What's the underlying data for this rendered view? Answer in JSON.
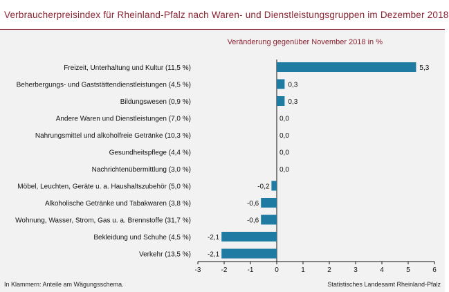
{
  "chart_data": {
    "type": "bar",
    "orientation": "horizontal",
    "title": "Verbraucherpreisindex für Rheinland-Pfalz nach Waren- und Dienstleistungsgruppen im Dezember 2018",
    "subtitle": "Veränderung  gegenüber November 2018 in %",
    "categories": [
      "Freizeit, Unterhaltung und Kultur (11,5 %)",
      "Beherbergungs- und Gaststättendienstleistungen (4,5 %)",
      "Bildungswesen (0,9 %)",
      "Andere Waren und Dienstleistungen (7,0 %)",
      "Nahrungsmittel und alkoholfreie Getränke (10,3 %)",
      "Gesundheitspflege (4,4 %)",
      "Nachrichtenübermittlung (3,0 %)",
      "Möbel, Leuchten, Geräte u. a. Haushaltszubehör (5,0 %)",
      "Alkoholische Getränke und Tabakwaren (3,8 %)",
      "Wohnung, Wasser, Strom, Gas u. a. Brennstoffe (31,7 %)",
      "Bekleidung und Schuhe (4,5 %)",
      "Verkehr (13,5 %)"
    ],
    "values": [
      5.3,
      0.3,
      0.3,
      0.0,
      0.0,
      0.0,
      0.0,
      -0.2,
      -0.6,
      -0.6,
      -2.1,
      -2.1
    ],
    "value_labels": [
      "5,3",
      "0,3",
      "0,3",
      "0,0",
      "0,0",
      "0,0",
      "0,0",
      "-0,2",
      "-0,6",
      "-0,6",
      "-2,1",
      "-2,1"
    ],
    "xlim": [
      -3,
      6
    ],
    "xticks": [
      "-3",
      "-2",
      "-1",
      "0",
      "1",
      "2",
      "3",
      "4",
      "5",
      "6"
    ],
    "grid": false,
    "bar_color": "#1f7ba1"
  },
  "footnote": "In Klammern: Anteile am Wägungsschema.",
  "source": "Statistisches Landesamt Rheinland-Pfalz"
}
